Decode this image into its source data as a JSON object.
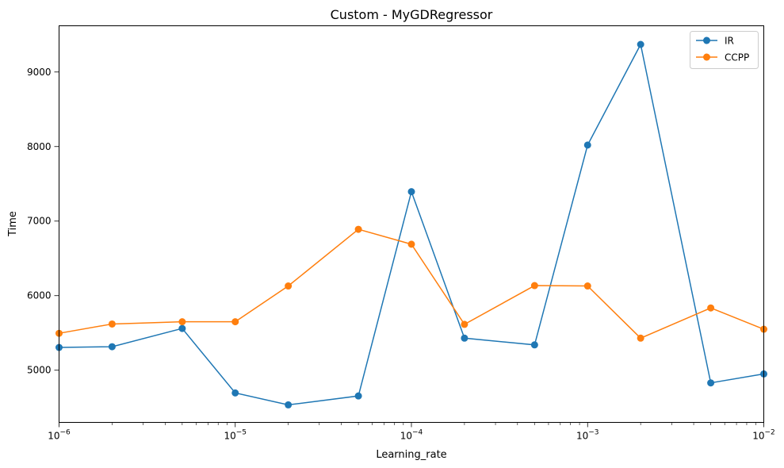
{
  "chart_data": {
    "type": "line",
    "title": "Custom - MyGDRegressor",
    "xlabel": "Learning_rate",
    "ylabel": "Time",
    "xscale": "log",
    "xlim": [
      1e-06,
      0.01
    ],
    "ylim": [
      4300,
      9620
    ],
    "x": [
      1e-06,
      2e-06,
      5e-06,
      1e-05,
      2e-05,
      5e-05,
      0.0001,
      0.0002,
      0.0005,
      0.001,
      0.002,
      0.005,
      0.01
    ],
    "xticks": [
      {
        "value": 1e-06,
        "base": "10",
        "exp": "−6"
      },
      {
        "value": 1e-05,
        "base": "10",
        "exp": "−5"
      },
      {
        "value": 0.0001,
        "base": "10",
        "exp": "−4"
      },
      {
        "value": 0.001,
        "base": "10",
        "exp": "−3"
      },
      {
        "value": 0.01,
        "base": "10",
        "exp": "−2"
      }
    ],
    "yticks": [
      5000,
      6000,
      7000,
      8000,
      9000
    ],
    "grid": false,
    "legend_position": "top-right",
    "series": [
      {
        "name": "IR",
        "color": "#1f77b4",
        "values": [
          5305,
          5315,
          5560,
          4695,
          4535,
          4655,
          7395,
          5430,
          5340,
          8020,
          9370,
          4830,
          4950
        ]
      },
      {
        "name": "CCPP",
        "color": "#ff7f0e",
        "values": [
          5495,
          5620,
          5650,
          5650,
          6130,
          6890,
          6690,
          5615,
          6135,
          6130,
          5430,
          5835,
          5550
        ]
      }
    ]
  }
}
